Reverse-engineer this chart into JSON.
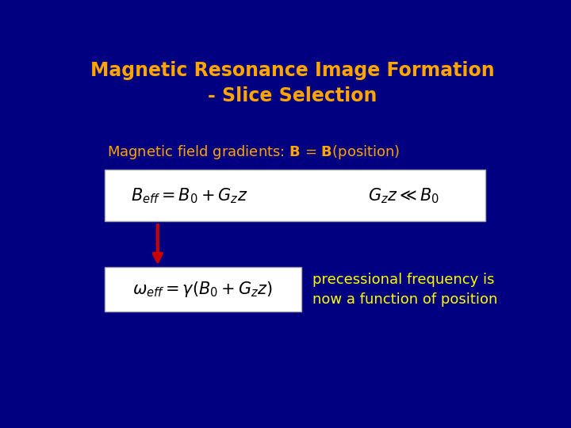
{
  "background_color": "#000080",
  "title_line1": "Magnetic Resonance Image Formation",
  "title_line2": "- Slice Selection",
  "title_color": "#FFA500",
  "title_fontsize": 17,
  "subtitle_color": "#FFA500",
  "subtitle_fontsize": 13,
  "formula1_latex": "$B_{eff} = B_0 + G_z z$",
  "formula2_latex": "$G_z z \\ll B_0$",
  "formula3_latex": "$\\omega_{eff} = \\gamma(B_0 + G_z z)$",
  "formula_box_color": "#FFFFFF",
  "formula_text_color": "#000000",
  "formula_fontsize": 15,
  "arrow_color": "#CC0000",
  "note_line1": "precessional frequency is",
  "note_line2": "now a function of position",
  "note_color": "#FFFF00",
  "note_fontsize": 13
}
